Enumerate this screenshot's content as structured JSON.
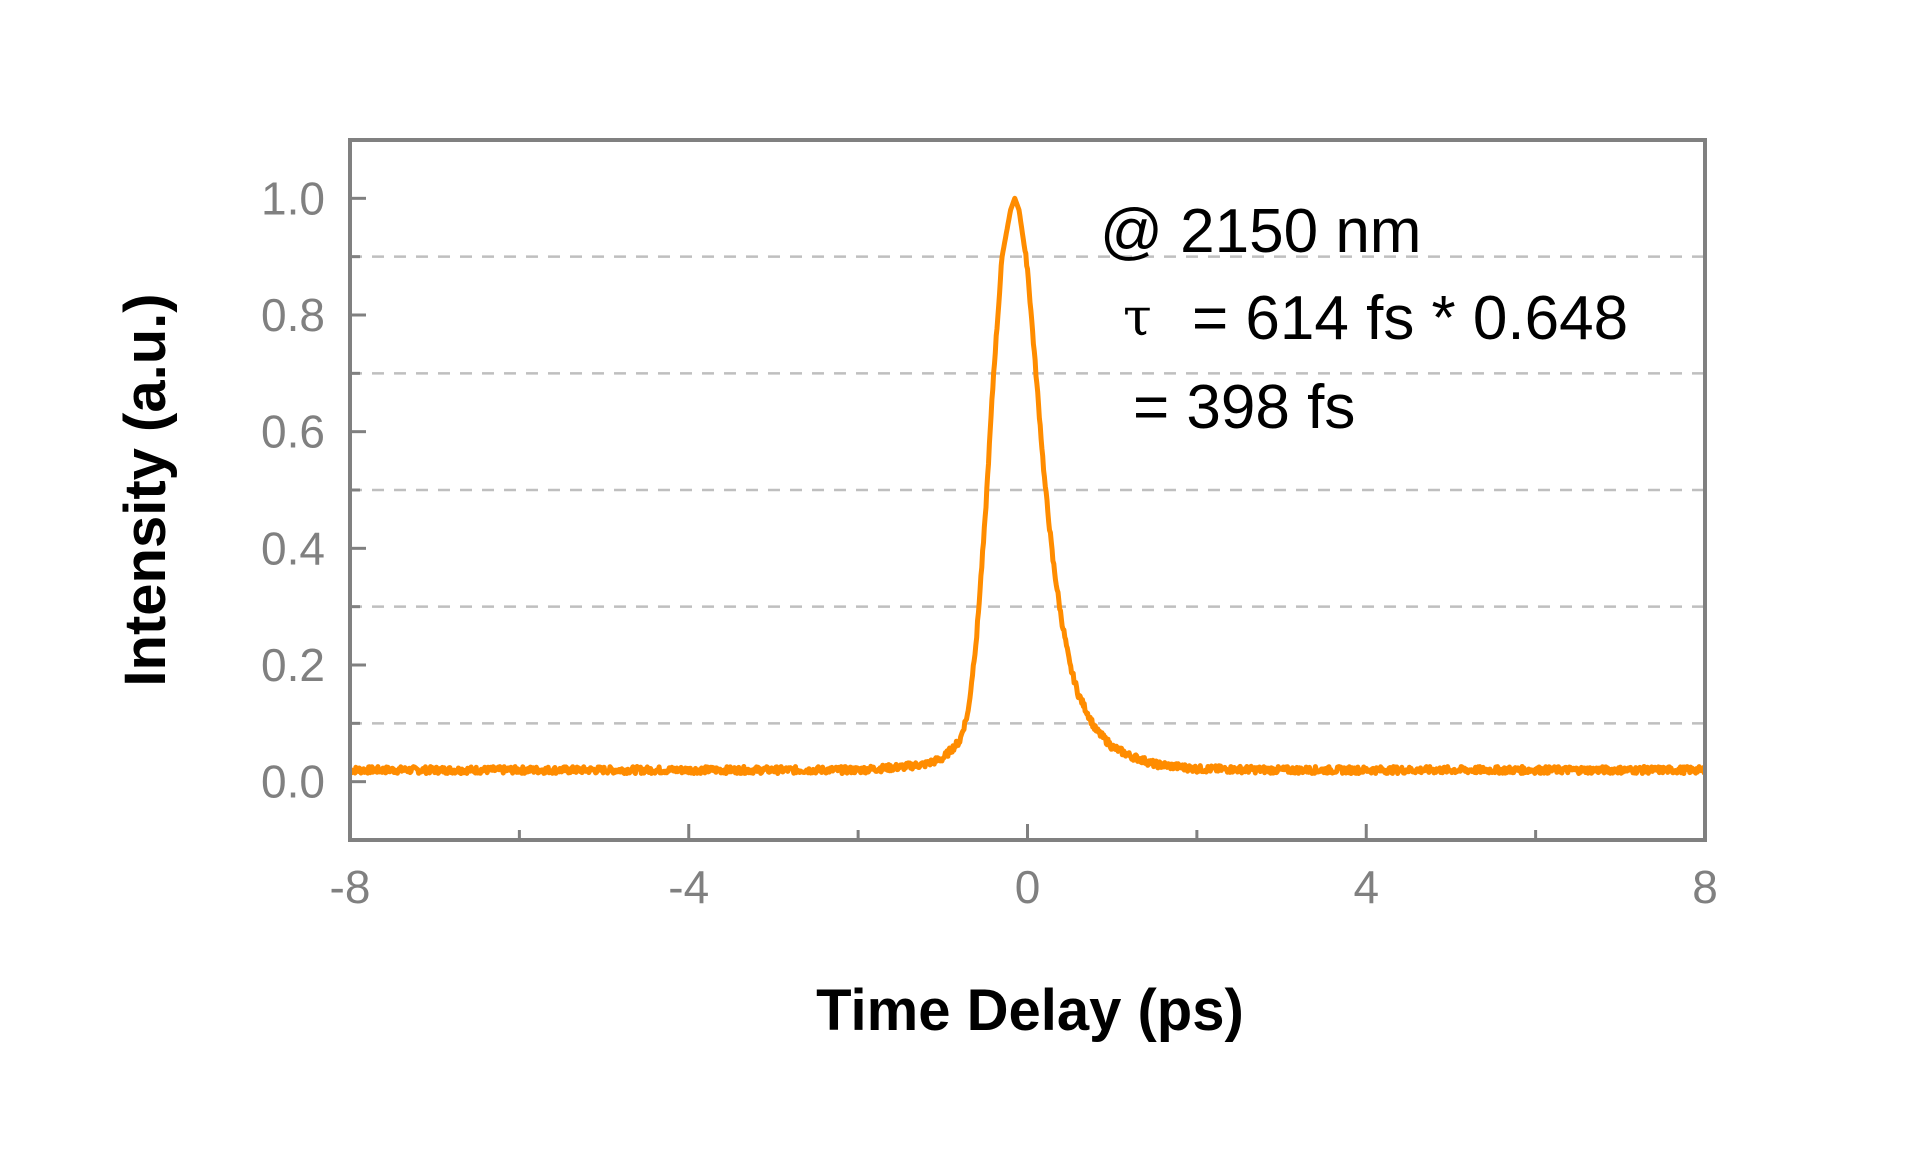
{
  "chart_data": {
    "type": "line",
    "xlabel": "Time Delay (ps)",
    "ylabel": "Intensity (a.u.)",
    "xlim": [
      -8,
      8
    ],
    "ylim": [
      -0.1,
      1.1
    ],
    "x_ticks": [
      -8,
      -4,
      0,
      4,
      8
    ],
    "x_tick_labels": [
      "-8",
      "-4",
      "0",
      "4",
      "8"
    ],
    "y_ticks": [
      0.0,
      0.2,
      0.4,
      0.6,
      0.8,
      1.0
    ],
    "y_tick_labels": [
      "0.0",
      "0.2",
      "0.4",
      "0.6",
      "0.8",
      "1.0"
    ],
    "grid": "horizontal dashed at 0.1, 0.3, 0.5, 0.7, 0.9",
    "grid_lines": [
      0.1,
      0.3,
      0.5,
      0.7,
      0.9
    ],
    "line_color": "#FF8C00",
    "frame_color": "#808080",
    "annotations": {
      "wavelength": "@ 2150 nm",
      "tau_symbol": "τ",
      "tau_expr": "= 614 fs * 0.648",
      "result": "= 398 fs"
    },
    "series": [
      {
        "x": [
          -8.0,
          -6.0,
          -4.0,
          -2.0,
          -1.5,
          -1.2,
          -1.0,
          -0.8,
          -0.7,
          -0.6,
          -0.5,
          -0.4,
          -0.3,
          -0.2,
          -0.15,
          -0.1,
          0.0,
          0.1,
          0.2,
          0.3,
          0.4,
          0.5,
          0.6,
          0.8,
          1.0,
          1.2,
          1.5,
          2.0,
          3.0,
          4.0,
          6.0,
          8.0
        ],
        "y": [
          0.02,
          0.02,
          0.02,
          0.02,
          0.025,
          0.03,
          0.04,
          0.07,
          0.12,
          0.25,
          0.45,
          0.7,
          0.9,
          0.98,
          1.0,
          0.98,
          0.88,
          0.7,
          0.52,
          0.38,
          0.28,
          0.2,
          0.15,
          0.09,
          0.06,
          0.045,
          0.03,
          0.022,
          0.02,
          0.02,
          0.02,
          0.02
        ]
      }
    ]
  }
}
